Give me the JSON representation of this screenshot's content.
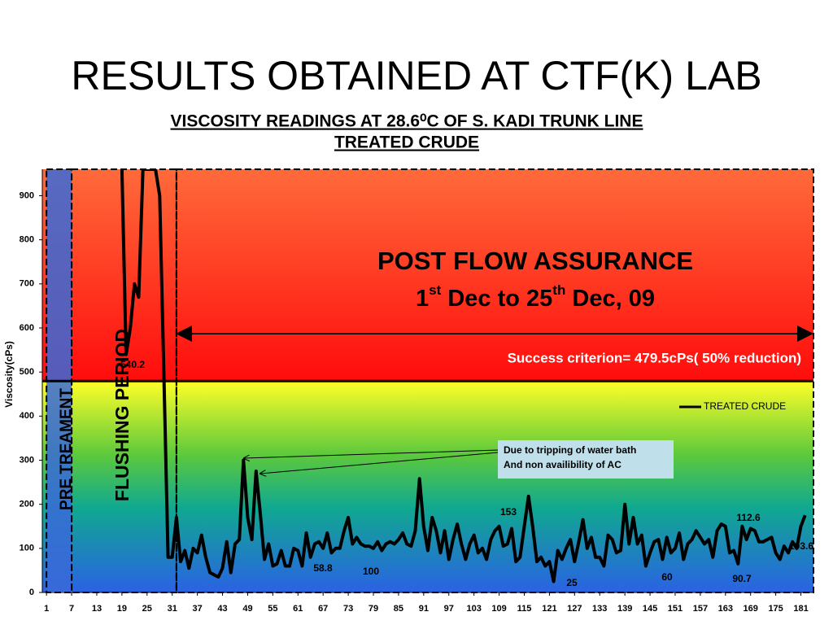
{
  "slide_title": "RESULTS OBTAINED AT CTF(K) LAB",
  "chart_data": {
    "type": "line",
    "title": [
      "VISCOSITY READINGS AT 28.6⁰C OF S. KADI TRUNK LINE",
      "TREATED CRUDE"
    ],
    "ylabel": "Viscosity(cPs)",
    "x": [
      19,
      20,
      21,
      22,
      23,
      24,
      25,
      26,
      27,
      28,
      29,
      30,
      31,
      32,
      33,
      34,
      35,
      36,
      37,
      38,
      39,
      40,
      41,
      42,
      43,
      44,
      45,
      46,
      47,
      48,
      49,
      50,
      51,
      52,
      53,
      54,
      55,
      56,
      57,
      58,
      59,
      60,
      61,
      62,
      63,
      64,
      65,
      66,
      67,
      68,
      69,
      70,
      71,
      72,
      73,
      74,
      75,
      76,
      77,
      78,
      79,
      80,
      81,
      82,
      83,
      84,
      85,
      86,
      87,
      88,
      89,
      90,
      91,
      92,
      93,
      94,
      95,
      96,
      97,
      98,
      99,
      100,
      101,
      102,
      103,
      104,
      105,
      106,
      107,
      108,
      109,
      110,
      111,
      112,
      113,
      114,
      115,
      116,
      117,
      118,
      119,
      120,
      121,
      122,
      123,
      124,
      125,
      126,
      127,
      128,
      129,
      130,
      131,
      132,
      133,
      134,
      135,
      136,
      137,
      138,
      139,
      140,
      141,
      142,
      143,
      144,
      145,
      146,
      147,
      148,
      149,
      150,
      151,
      152,
      153,
      154,
      155,
      156,
      157,
      158,
      159,
      160,
      161,
      162,
      163,
      164,
      165,
      166,
      167,
      168,
      169,
      170,
      171,
      172,
      173,
      174,
      175,
      176,
      177,
      178,
      179,
      180,
      181,
      182
    ],
    "series": [
      {
        "name": "TREATED CRUDE",
        "color": "#000000",
        "values": [
          960,
          540,
          600,
          700,
          670,
          960,
          960,
          960,
          960,
          900,
          500,
          80,
          80,
          170,
          70,
          95,
          55,
          100,
          90,
          130,
          80,
          45,
          40,
          35,
          55,
          115,
          45,
          110,
          120,
          300,
          170,
          120,
          275,
          180,
          75,
          110,
          60,
          65,
          95,
          60,
          60,
          100,
          95,
          60,
          135,
          80,
          110,
          115,
          100,
          135,
          90,
          100,
          100,
          140,
          170,
          110,
          125,
          110,
          105,
          105,
          100,
          115,
          95,
          110,
          115,
          110,
          120,
          135,
          110,
          105,
          140,
          258,
          150,
          95,
          170,
          140,
          90,
          140,
          75,
          120,
          155,
          110,
          75,
          110,
          130,
          90,
          100,
          75,
          120,
          140,
          150,
          105,
          110,
          145,
          70,
          80,
          150,
          218,
          150,
          70,
          80,
          60,
          70,
          25,
          95,
          75,
          100,
          120,
          70,
          115,
          165,
          100,
          125,
          80,
          80,
          60,
          130,
          120,
          90,
          95,
          200,
          110,
          170,
          110,
          130,
          60,
          90,
          115,
          120,
          75,
          125,
          90,
          100,
          135,
          75,
          110,
          120,
          140,
          125,
          110,
          120,
          80,
          140,
          155,
          150,
          90,
          95,
          65,
          150,
          120,
          145,
          140,
          115,
          115,
          120,
          125,
          90,
          75,
          105,
          90,
          115,
          100,
          150,
          175
        ]
      }
    ],
    "xlim": [
      0,
      184
    ],
    "ylim": [
      0,
      960
    ],
    "xticks": [
      1,
      7,
      13,
      19,
      25,
      31,
      37,
      43,
      49,
      55,
      61,
      67,
      73,
      79,
      85,
      91,
      97,
      103,
      109,
      115,
      121,
      127,
      133,
      139,
      145,
      151,
      157,
      163,
      169,
      175,
      181
    ],
    "yticks": [
      0,
      100,
      200,
      300,
      400,
      500,
      600,
      700,
      800,
      900
    ],
    "threshold": 479.5,
    "threshold_label": "Success criterion= 479.5cPs( 50% reduction)",
    "region_title": "POST FLOW ASSURANCE",
    "region_dates": [
      "1",
      "st",
      " Dec to 25",
      "th",
      " Dec, 09"
    ],
    "flushing_label": "FLUSHING PERIOD",
    "pre_label": "PRE TREAMENT",
    "callout": [
      "Due to tripping of water bath",
      "And non availibility of AC"
    ],
    "annotations": [
      "540.2",
      "58.8",
      "100",
      "153",
      "25",
      "60",
      "90.7",
      "112.6",
      "103.6"
    ],
    "legend": "top-right"
  }
}
